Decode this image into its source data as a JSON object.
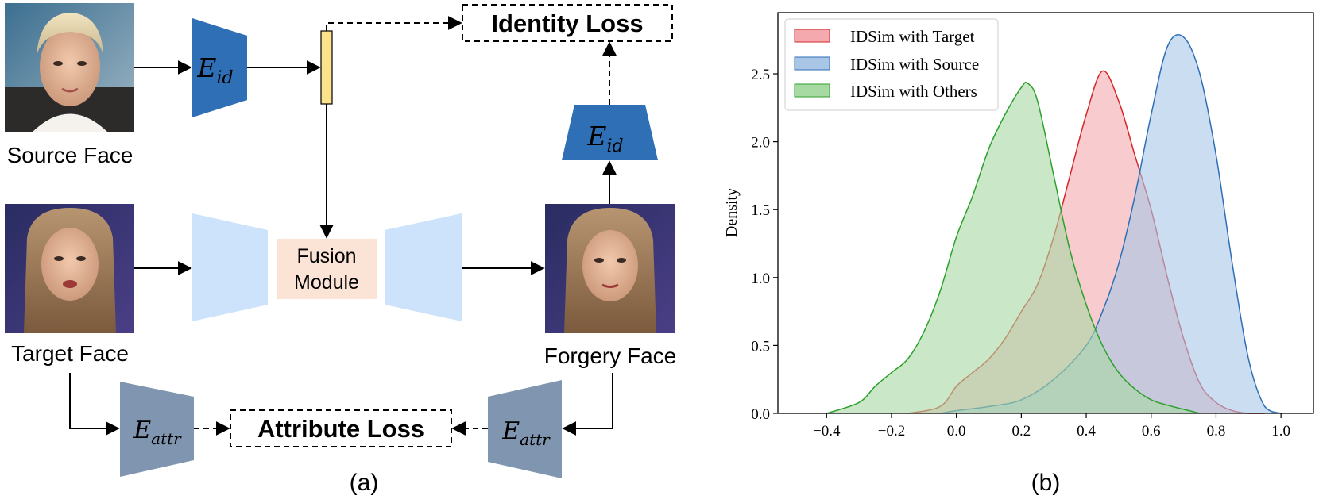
{
  "panel_a": {
    "source_face_label": "Source Face",
    "target_face_label": "Target Face",
    "forgery_face_label": "Forgery Face",
    "fusion_line1": "Fusion",
    "fusion_line2": "Module",
    "identity_loss": "Identity Loss",
    "attribute_loss": "Attribute Loss",
    "e_id_main": "E",
    "e_id_sub": "id",
    "e_attr_main": "E",
    "e_attr_sub": "attr",
    "caption": "(a)",
    "colors": {
      "encoder_id": "#2e6fb5",
      "encoder_attr": "#8096b0",
      "generator": "#cde3fb",
      "fusion": "#fbe4d6",
      "id_vector": "#fce28a"
    }
  },
  "panel_b": {
    "caption": "(b)",
    "chart_data": {
      "type": "area",
      "ylabel": "Density",
      "xlabel": "",
      "xlim": [
        -0.55,
        1.1
      ],
      "ylim": [
        0.0,
        2.95
      ],
      "xticks": [
        "−0.4",
        "−0.2",
        "0.0",
        "0.2",
        "0.4",
        "0.6",
        "0.8",
        "1.0"
      ],
      "xtick_values": [
        -0.4,
        -0.2,
        0.0,
        0.2,
        0.4,
        0.6,
        0.8,
        1.0
      ],
      "yticks": [
        "0.0",
        "0.5",
        "1.0",
        "1.5",
        "2.0",
        "2.5"
      ],
      "ytick_values": [
        0.0,
        0.5,
        1.0,
        1.5,
        2.0,
        2.5
      ],
      "legend_position": "top-left",
      "series": [
        {
          "name": "IDSim with Target",
          "color": "#d62728",
          "fill": "#f4a9af",
          "x": [
            -0.15,
            -0.05,
            0.0,
            0.05,
            0.1,
            0.15,
            0.2,
            0.25,
            0.3,
            0.35,
            0.4,
            0.45,
            0.5,
            0.55,
            0.6,
            0.65,
            0.7,
            0.75,
            0.8,
            0.85,
            0.9,
            0.95
          ],
          "y": [
            0.0,
            0.05,
            0.2,
            0.3,
            0.4,
            0.55,
            0.75,
            0.95,
            1.3,
            1.75,
            2.2,
            2.52,
            2.3,
            1.9,
            1.5,
            1.0,
            0.55,
            0.22,
            0.08,
            0.02,
            0.0,
            0.0
          ]
        },
        {
          "name": "IDSim with Source",
          "color": "#2e6fb5",
          "fill": "#a9c6e6",
          "x": [
            -0.05,
            0.0,
            0.1,
            0.2,
            0.3,
            0.4,
            0.45,
            0.5,
            0.55,
            0.6,
            0.65,
            0.7,
            0.75,
            0.8,
            0.85,
            0.9,
            0.95,
            1.0
          ],
          "y": [
            0.0,
            0.02,
            0.05,
            0.1,
            0.25,
            0.5,
            0.75,
            1.1,
            1.6,
            2.2,
            2.7,
            2.77,
            2.5,
            1.9,
            1.1,
            0.4,
            0.05,
            0.0
          ]
        },
        {
          "name": "IDSim with Others",
          "color": "#2ca02c",
          "fill": "#a7d9a2",
          "x": [
            -0.4,
            -0.3,
            -0.25,
            -0.2,
            -0.15,
            -0.1,
            -0.05,
            0.0,
            0.05,
            0.1,
            0.15,
            0.2,
            0.22,
            0.25,
            0.3,
            0.35,
            0.4,
            0.45,
            0.5,
            0.55,
            0.6,
            0.65,
            0.7,
            0.75
          ],
          "y": [
            0.0,
            0.08,
            0.2,
            0.3,
            0.4,
            0.6,
            0.9,
            1.3,
            1.6,
            1.95,
            2.2,
            2.4,
            2.43,
            2.3,
            1.75,
            1.2,
            0.8,
            0.5,
            0.3,
            0.18,
            0.1,
            0.06,
            0.03,
            0.0
          ]
        }
      ]
    }
  }
}
